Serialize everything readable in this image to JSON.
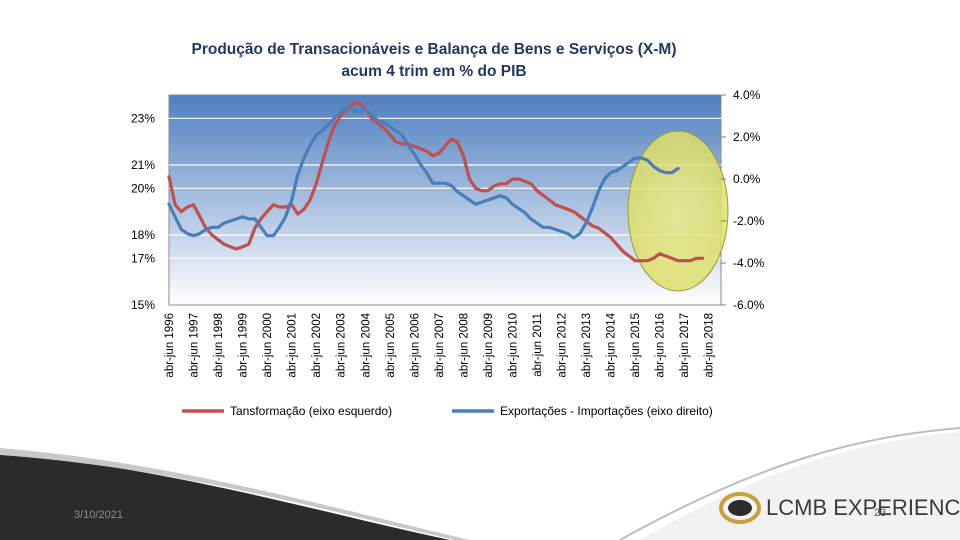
{
  "slide": {
    "date": "3/10/2021",
    "number": "23",
    "brand_text": "LCMB EXPERIENCE",
    "colors": {
      "wave_dark": "#2b2b2b",
      "wave_light": "#bdbdbd",
      "logo_gold": "#c8a13a"
    }
  },
  "chart_data": {
    "type": "line",
    "title": "Produção de Transacionáveis e Balança de Bens e Serviços (X-M)",
    "subtitle": "acum 4 trim em % do PIB",
    "xlabel": "",
    "ylabel": "",
    "x_tick_labels": [
      "abr-jun 1996",
      "abr-jun 1997",
      "abr-jun 1998",
      "abr-jun 1999",
      "abr-jun 2000",
      "abr-jun 2001",
      "abr-jun 2002",
      "abr-jun 2003",
      "abr-jun 2004",
      "abr-jun 2005",
      "abr-jun 2006",
      "abr-jun 2007",
      "abr-jun 2008",
      "abr-jun 2009",
      "abr-jun 2010",
      "abr-jun 2011",
      "abr-jun 2012",
      "abr-jun 2013",
      "abr-jun 2014",
      "abr-jun 2015",
      "abr-jun 2016",
      "abr-jun 2017",
      "abr-jun 2018"
    ],
    "x_range": [
      1996.25,
      2018.75
    ],
    "y_left_tick_labels": [
      "15%",
      "17%",
      "18%",
      "20%",
      "21%",
      "23%"
    ],
    "y_left_range": [
      15,
      24
    ],
    "y_right_tick_labels": [
      "-6.0%",
      "-4.0%",
      "-2.0%",
      "0.0%",
      "2.0%",
      "4.0%"
    ],
    "y_right_range": [
      -6,
      4
    ],
    "grid": true,
    "plot_background": [
      "#4f7fc0",
      "#ffffff"
    ],
    "legend_position": "bottom",
    "annotation": {
      "shape": "ellipse",
      "color": "#e6e67a",
      "x_range": [
        2014.6,
        2018.8
      ]
    },
    "series": [
      {
        "name": "Tansformação (eixo esquerdo)",
        "axis": "left",
        "color": "#c0504d",
        "points": [
          [
            1996.25,
            20.5
          ],
          [
            1996.5,
            19.3
          ],
          [
            1996.75,
            19.0
          ],
          [
            1997.0,
            19.2
          ],
          [
            1997.25,
            19.3
          ],
          [
            1997.5,
            18.8
          ],
          [
            1997.75,
            18.3
          ],
          [
            1998.0,
            18.0
          ],
          [
            1998.25,
            17.8
          ],
          [
            1998.5,
            17.6
          ],
          [
            1998.75,
            17.5
          ],
          [
            1999.0,
            17.4
          ],
          [
            1999.25,
            17.5
          ],
          [
            1999.5,
            17.6
          ],
          [
            1999.75,
            18.3
          ],
          [
            2000.0,
            18.7
          ],
          [
            2000.25,
            19.0
          ],
          [
            2000.5,
            19.3
          ],
          [
            2000.75,
            19.2
          ],
          [
            2001.0,
            19.2
          ],
          [
            2001.25,
            19.3
          ],
          [
            2001.5,
            18.9
          ],
          [
            2001.75,
            19.1
          ],
          [
            2002.0,
            19.5
          ],
          [
            2002.25,
            20.2
          ],
          [
            2002.5,
            21.1
          ],
          [
            2002.75,
            22.0
          ],
          [
            2003.0,
            22.7
          ],
          [
            2003.25,
            23.1
          ],
          [
            2003.5,
            23.4
          ],
          [
            2003.75,
            23.6
          ],
          [
            2004.0,
            23.7
          ],
          [
            2004.25,
            23.4
          ],
          [
            2004.5,
            23.0
          ],
          [
            2004.75,
            22.8
          ],
          [
            2005.0,
            22.6
          ],
          [
            2005.25,
            22.3
          ],
          [
            2005.5,
            22.0
          ],
          [
            2005.75,
            21.9
          ],
          [
            2006.0,
            21.9
          ],
          [
            2006.25,
            21.8
          ],
          [
            2006.5,
            21.7
          ],
          [
            2006.75,
            21.6
          ],
          [
            2007.0,
            21.4
          ],
          [
            2007.25,
            21.5
          ],
          [
            2007.5,
            21.8
          ],
          [
            2007.75,
            22.1
          ],
          [
            2008.0,
            22.0
          ],
          [
            2008.25,
            21.4
          ],
          [
            2008.5,
            20.4
          ],
          [
            2008.75,
            20.0
          ],
          [
            2009.0,
            19.9
          ],
          [
            2009.25,
            19.9
          ],
          [
            2009.5,
            20.1
          ],
          [
            2009.75,
            20.2
          ],
          [
            2010.0,
            20.2
          ],
          [
            2010.25,
            20.4
          ],
          [
            2010.5,
            20.4
          ],
          [
            2010.75,
            20.3
          ],
          [
            2011.0,
            20.2
          ],
          [
            2011.25,
            19.9
          ],
          [
            2011.5,
            19.7
          ],
          [
            2011.75,
            19.5
          ],
          [
            2012.0,
            19.3
          ],
          [
            2012.25,
            19.2
          ],
          [
            2012.5,
            19.1
          ],
          [
            2012.75,
            19.0
          ],
          [
            2013.0,
            18.8
          ],
          [
            2013.25,
            18.6
          ],
          [
            2013.5,
            18.4
          ],
          [
            2013.75,
            18.3
          ],
          [
            2014.0,
            18.1
          ],
          [
            2014.25,
            17.9
          ],
          [
            2014.5,
            17.6
          ],
          [
            2014.75,
            17.3
          ],
          [
            2015.0,
            17.1
          ],
          [
            2015.25,
            16.9
          ],
          [
            2015.5,
            16.9
          ],
          [
            2015.75,
            16.9
          ],
          [
            2016.0,
            17.0
          ],
          [
            2016.25,
            17.2
          ],
          [
            2016.5,
            17.1
          ],
          [
            2016.75,
            17.0
          ],
          [
            2017.0,
            16.9
          ],
          [
            2017.25,
            16.9
          ],
          [
            2017.5,
            16.9
          ],
          [
            2017.75,
            17.0
          ],
          [
            2018.0,
            17.0
          ]
        ]
      },
      {
        "name": "Exportações - Importações (eixo direito)",
        "axis": "right",
        "color": "#4a7ebb",
        "points": [
          [
            1996.25,
            -1.2
          ],
          [
            1996.5,
            -1.8
          ],
          [
            1996.75,
            -2.4
          ],
          [
            1997.0,
            -2.6
          ],
          [
            1997.25,
            -2.7
          ],
          [
            1997.5,
            -2.6
          ],
          [
            1997.75,
            -2.4
          ],
          [
            1998.0,
            -2.3
          ],
          [
            1998.25,
            -2.3
          ],
          [
            1998.5,
            -2.1
          ],
          [
            1998.75,
            -2.0
          ],
          [
            1999.0,
            -1.9
          ],
          [
            1999.25,
            -1.8
          ],
          [
            1999.5,
            -1.9
          ],
          [
            1999.75,
            -1.9
          ],
          [
            2000.0,
            -2.3
          ],
          [
            2000.25,
            -2.7
          ],
          [
            2000.5,
            -2.7
          ],
          [
            2000.75,
            -2.3
          ],
          [
            2001.0,
            -1.8
          ],
          [
            2001.25,
            -1.0
          ],
          [
            2001.5,
            0.2
          ],
          [
            2001.75,
            1.0
          ],
          [
            2002.0,
            1.6
          ],
          [
            2002.25,
            2.1
          ],
          [
            2002.5,
            2.3
          ],
          [
            2002.75,
            2.6
          ],
          [
            2003.0,
            2.9
          ],
          [
            2003.25,
            3.2
          ],
          [
            2003.5,
            3.4
          ],
          [
            2003.75,
            3.3
          ],
          [
            2004.0,
            3.2
          ],
          [
            2004.25,
            3.3
          ],
          [
            2004.5,
            3.1
          ],
          [
            2004.75,
            2.8
          ],
          [
            2005.0,
            2.7
          ],
          [
            2005.25,
            2.5
          ],
          [
            2005.5,
            2.3
          ],
          [
            2005.75,
            2.1
          ],
          [
            2006.0,
            1.6
          ],
          [
            2006.25,
            1.2
          ],
          [
            2006.5,
            0.7
          ],
          [
            2006.75,
            0.3
          ],
          [
            2007.0,
            -0.2
          ],
          [
            2007.25,
            -0.2
          ],
          [
            2007.5,
            -0.2
          ],
          [
            2007.75,
            -0.3
          ],
          [
            2008.0,
            -0.6
          ],
          [
            2008.25,
            -0.8
          ],
          [
            2008.5,
            -1.0
          ],
          [
            2008.75,
            -1.2
          ],
          [
            2009.0,
            -1.1
          ],
          [
            2009.25,
            -1.0
          ],
          [
            2009.5,
            -0.9
          ],
          [
            2009.75,
            -0.8
          ],
          [
            2010.0,
            -0.9
          ],
          [
            2010.25,
            -1.2
          ],
          [
            2010.5,
            -1.4
          ],
          [
            2010.75,
            -1.6
          ],
          [
            2011.0,
            -1.9
          ],
          [
            2011.25,
            -2.1
          ],
          [
            2011.5,
            -2.3
          ],
          [
            2011.75,
            -2.3
          ],
          [
            2012.0,
            -2.4
          ],
          [
            2012.25,
            -2.5
          ],
          [
            2012.5,
            -2.6
          ],
          [
            2012.75,
            -2.8
          ],
          [
            2013.0,
            -2.6
          ],
          [
            2013.25,
            -2.1
          ],
          [
            2013.5,
            -1.4
          ],
          [
            2013.75,
            -0.6
          ],
          [
            2014.0,
            0.0
          ],
          [
            2014.25,
            0.3
          ],
          [
            2014.5,
            0.4
          ],
          [
            2014.75,
            0.6
          ],
          [
            2015.0,
            0.8
          ],
          [
            2015.25,
            1.0
          ],
          [
            2015.5,
            1.0
          ],
          [
            2015.75,
            0.9
          ],
          [
            2016.0,
            0.6
          ],
          [
            2016.25,
            0.4
          ],
          [
            2016.5,
            0.3
          ],
          [
            2016.75,
            0.3
          ],
          [
            2017.0,
            0.5
          ]
        ]
      }
    ]
  }
}
